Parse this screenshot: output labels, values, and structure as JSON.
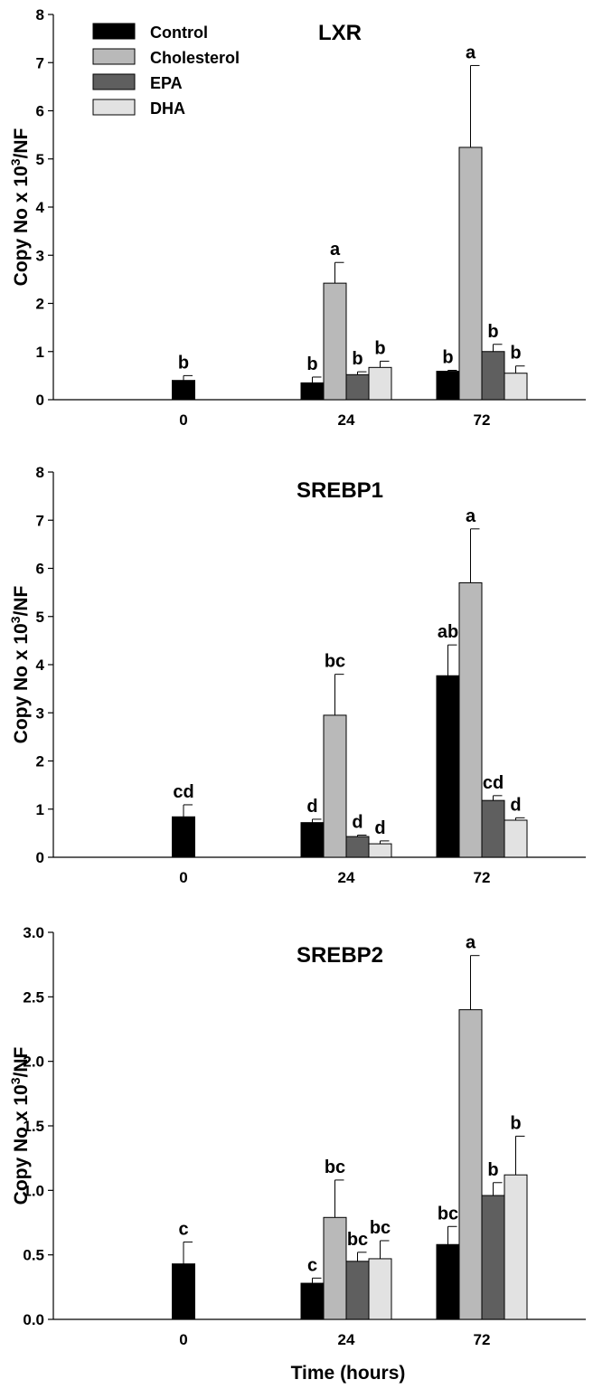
{
  "figure": {
    "xlabel": "Time (hours)",
    "legend": {
      "placement": "top-left",
      "entries": [
        {
          "name": "Control",
          "color": "#000000"
        },
        {
          "name": "Cholesterol",
          "color": "#b9b9b9"
        },
        {
          "name": "EPA",
          "color": "#5f5f5f"
        },
        {
          "name": "DHA",
          "color": "#e2e2e2"
        }
      ]
    }
  },
  "chart_data": [
    {
      "type": "bar",
      "title": "LXR",
      "ylabel": "Copy No x 10³/NF",
      "ylim": [
        0,
        8
      ],
      "yticks": [
        "0",
        "1",
        "2",
        "3",
        "4",
        "5",
        "6",
        "7",
        "8"
      ],
      "categories": [
        "0",
        "24",
        "72"
      ],
      "series": [
        {
          "name": "Control",
          "values": [
            0.4,
            0.35,
            0.59
          ],
          "errors": [
            0.1,
            0.12,
            0.02
          ],
          "labels": [
            "b",
            "b",
            "b"
          ]
        },
        {
          "name": "Cholesterol",
          "values": [
            null,
            2.42,
            5.24
          ],
          "errors": [
            null,
            0.43,
            1.7
          ],
          "labels": [
            null,
            "a",
            "a"
          ]
        },
        {
          "name": "EPA",
          "values": [
            null,
            0.52,
            1.0
          ],
          "errors": [
            null,
            0.06,
            0.15
          ],
          "labels": [
            null,
            "b",
            "b"
          ]
        },
        {
          "name": "DHA",
          "values": [
            null,
            0.67,
            0.55
          ],
          "errors": [
            null,
            0.13,
            0.15
          ],
          "labels": [
            null,
            "b",
            "b"
          ]
        }
      ]
    },
    {
      "type": "bar",
      "title": "SREBP1",
      "ylabel": "Copy No x 10³/NF",
      "ylim": [
        0,
        8
      ],
      "yticks": [
        "0",
        "1",
        "2",
        "3",
        "4",
        "5",
        "6",
        "7",
        "8"
      ],
      "categories": [
        "0",
        "24",
        "72"
      ],
      "series": [
        {
          "name": "Control",
          "values": [
            0.84,
            0.72,
            3.77
          ],
          "errors": [
            0.25,
            0.07,
            0.64
          ],
          "labels": [
            "cd",
            "d",
            "ab"
          ]
        },
        {
          "name": "Cholesterol",
          "values": [
            null,
            2.95,
            5.7
          ],
          "errors": [
            null,
            0.85,
            1.12
          ],
          "labels": [
            null,
            "bc",
            "a"
          ]
        },
        {
          "name": "EPA",
          "values": [
            null,
            0.43,
            1.18
          ],
          "errors": [
            null,
            0.03,
            0.1
          ],
          "labels": [
            null,
            "d",
            "cd"
          ]
        },
        {
          "name": "DHA",
          "values": [
            null,
            0.28,
            0.77
          ],
          "errors": [
            null,
            0.06,
            0.05
          ],
          "labels": [
            null,
            "d",
            "d"
          ]
        }
      ]
    },
    {
      "type": "bar",
      "title": "SREBP2",
      "ylabel": "Copy No x 10³/NF",
      "ylim": [
        0,
        3
      ],
      "yticks": [
        "0.0",
        "0.5",
        "1.0",
        "1.5",
        "2.0",
        "2.5",
        "3.0"
      ],
      "categories": [
        "0",
        "24",
        "72"
      ],
      "series": [
        {
          "name": "Control",
          "values": [
            0.43,
            0.28,
            0.58
          ],
          "errors": [
            0.17,
            0.04,
            0.14
          ],
          "labels": [
            "c",
            "c",
            "bc"
          ]
        },
        {
          "name": "Cholesterol",
          "values": [
            null,
            0.79,
            2.4
          ],
          "errors": [
            null,
            0.29,
            0.42
          ],
          "labels": [
            null,
            "bc",
            "a"
          ]
        },
        {
          "name": "EPA",
          "values": [
            null,
            0.45,
            0.96
          ],
          "errors": [
            null,
            0.07,
            0.1
          ],
          "labels": [
            null,
            "bc",
            "b"
          ]
        },
        {
          "name": "DHA",
          "values": [
            null,
            0.47,
            1.12
          ],
          "errors": [
            null,
            0.14,
            0.3
          ],
          "labels": [
            null,
            "bc",
            "b"
          ]
        }
      ]
    }
  ]
}
